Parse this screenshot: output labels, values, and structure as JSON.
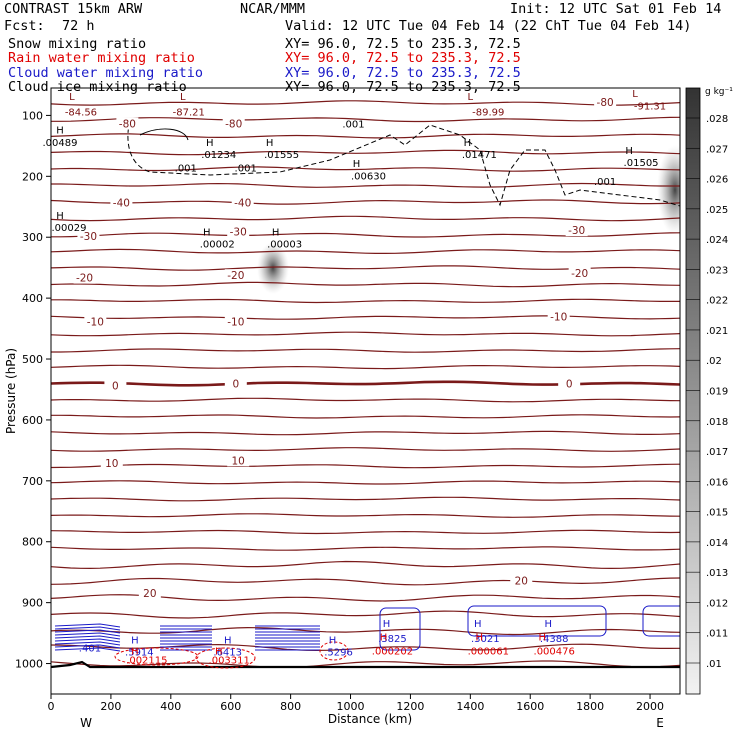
{
  "header": {
    "model": "CONTRAST 15km ARW",
    "org": "NCAR/MMM",
    "init": "Init: 12 UTC Sat 01 Feb 14",
    "fcst_label": "Fcst:",
    "fcst_value": "72 h",
    "valid": "Valid: 12 UTC Tue 04 Feb 14 (22 ChT Tue 04 Feb 14)"
  },
  "fields": [
    {
      "label": "Snow mixing ratio",
      "xy": "XY=  96.0, 72.5 to 235.3, 72.5",
      "color": "#000000"
    },
    {
      "label": "Rain water mixing ratio",
      "xy": "XY=  96.0, 72.5 to 235.3, 72.5",
      "color": "#e00000"
    },
    {
      "label": "Cloud water mixing ratio",
      "xy": "XY=  96.0, 72.5 to 235.3, 72.5",
      "color": "#1a1ac8"
    },
    {
      "label": "Cloud ice mixing ratio",
      "xy": "XY=  96.0, 72.5 to 235.3, 72.5",
      "color": "#000000"
    }
  ],
  "colorbar": {
    "unit": "g kg⁻¹",
    "ticks": [
      ".028",
      ".027",
      ".026",
      ".025",
      ".024",
      ".023",
      ".022",
      ".021",
      ".02",
      ".019",
      ".018",
      ".017",
      ".016",
      ".015",
      ".014",
      ".013",
      ".012",
      ".011",
      ".01"
    ]
  },
  "chart_data": {
    "type": "contour",
    "xlabel": "Distance (km)",
    "ylabel": "Pressure (hPa)",
    "xlim": [
      0,
      2100
    ],
    "ylim": [
      1050,
      55
    ],
    "x_ticks": [
      0,
      200,
      400,
      600,
      800,
      1000,
      1200,
      1400,
      1600,
      1800,
      2000
    ],
    "x_tick_labels": [
      "0",
      "200",
      "400",
      "600",
      "800",
      "1000",
      "1200",
      "1400",
      "1600",
      "1800",
      "2000"
    ],
    "y_ticks": [
      100,
      200,
      300,
      400,
      500,
      600,
      700,
      800,
      900,
      1000
    ],
    "y_tick_labels": [
      "100",
      "200",
      "300",
      "400",
      "500",
      "600",
      "700",
      "800",
      "900",
      "1000"
    ],
    "end_labels": {
      "west": "W",
      "east": "E"
    },
    "temperature_contour_labels": [
      {
        "text": "-80",
        "x": 255,
        "p": 115
      },
      {
        "text": "-80",
        "x": 610,
        "p": 115
      },
      {
        "text": "-80",
        "x": 1850,
        "p": 80
      },
      {
        "text": "-40",
        "x": 235,
        "p": 245
      },
      {
        "text": "-40",
        "x": 640,
        "p": 245
      },
      {
        "text": "-30",
        "x": 125,
        "p": 300
      },
      {
        "text": "-30",
        "x": 625,
        "p": 292
      },
      {
        "text": "-30",
        "x": 1755,
        "p": 290
      },
      {
        "text": "-20",
        "x": 112,
        "p": 368
      },
      {
        "text": "-20",
        "x": 617,
        "p": 364
      },
      {
        "text": "-20",
        "x": 1765,
        "p": 360
      },
      {
        "text": "-10",
        "x": 148,
        "p": 440
      },
      {
        "text": "-10",
        "x": 617,
        "p": 440
      },
      {
        "text": "-10",
        "x": 1695,
        "p": 432
      },
      {
        "text": "0",
        "x": 215,
        "p": 545
      },
      {
        "text": "0",
        "x": 617,
        "p": 542
      },
      {
        "text": "0",
        "x": 1730,
        "p": 542
      },
      {
        "text": "10",
        "x": 203,
        "p": 672
      },
      {
        "text": "10",
        "x": 625,
        "p": 668
      },
      {
        "text": "20",
        "x": 330,
        "p": 886
      },
      {
        "text": "20",
        "x": 1570,
        "p": 865
      }
    ],
    "extrema_labels": [
      {
        "text": "L",
        "x": 70,
        "p": 75,
        "color": "#7a0f0f"
      },
      {
        "text": "-84.56",
        "x": 100,
        "p": 100,
        "color": "#7a0f0f"
      },
      {
        "text": "L",
        "x": 440,
        "p": 75,
        "color": "#7a0f0f"
      },
      {
        "text": "-87.21",
        "x": 460,
        "p": 100,
        "color": "#7a0f0f"
      },
      {
        "text": "L",
        "x": 1400,
        "p": 75,
        "color": "#7a0f0f"
      },
      {
        "text": "-89.99",
        "x": 1460,
        "p": 100,
        "color": "#7a0f0f"
      },
      {
        "text": "L",
        "x": 1950,
        "p": 70,
        "color": "#7a0f0f"
      },
      {
        "text": "-91.31",
        "x": 2000,
        "p": 90,
        "color": "#7a0f0f"
      },
      {
        "text": "H",
        "x": 30,
        "p": 130,
        "color": "#000000"
      },
      {
        "text": ".00489",
        "x": 30,
        "p": 150,
        "color": "#000000"
      },
      {
        "text": "H",
        "x": 530,
        "p": 150,
        "color": "#000000"
      },
      {
        "text": ".01234",
        "x": 560,
        "p": 170,
        "color": "#000000"
      },
      {
        "text": "H",
        "x": 730,
        "p": 150,
        "color": "#000000"
      },
      {
        "text": ".01555",
        "x": 770,
        "p": 170,
        "color": "#000000"
      },
      {
        "text": "H",
        "x": 1020,
        "p": 185,
        "color": "#000000"
      },
      {
        "text": ".00630",
        "x": 1060,
        "p": 205,
        "color": "#000000"
      },
      {
        "text": "H",
        "x": 1390,
        "p": 150,
        "color": "#000000"
      },
      {
        "text": ".01471",
        "x": 1430,
        "p": 170,
        "color": "#000000"
      },
      {
        "text": "H",
        "x": 1930,
        "p": 163,
        "color": "#000000"
      },
      {
        "text": ".01505",
        "x": 1970,
        "p": 183,
        "color": "#000000"
      },
      {
        "text": "H",
        "x": 30,
        "p": 270,
        "color": "#000000"
      },
      {
        "text": ".00029",
        "x": 60,
        "p": 290,
        "color": "#000000"
      },
      {
        "text": "H",
        "x": 520,
        "p": 297,
        "color": "#000000"
      },
      {
        "text": ".00002",
        "x": 555,
        "p": 317,
        "color": "#000000"
      },
      {
        "text": "H",
        "x": 750,
        "p": 297,
        "color": "#000000"
      },
      {
        "text": ".00003",
        "x": 780,
        "p": 317,
        "color": "#000000"
      },
      {
        "text": ".001",
        "x": 1010,
        "p": 120,
        "color": "#000000"
      },
      {
        "text": ".001",
        "x": 450,
        "p": 192,
        "color": "#000000"
      },
      {
        "text": ".001",
        "x": 650,
        "p": 192,
        "color": "#000000"
      },
      {
        "text": ".001",
        "x": 1850,
        "p": 214,
        "color": "#000000"
      },
      {
        "text": ".401",
        "x": 130,
        "p": 980,
        "color": "#1a1ac8"
      },
      {
        "text": "H",
        "x": 280,
        "p": 967,
        "color": "#1a1ac8"
      },
      {
        "text": ".5914",
        "x": 295,
        "p": 987,
        "color": "#1a1ac8"
      },
      {
        "text": "H",
        "x": 590,
        "p": 967,
        "color": "#1a1ac8"
      },
      {
        "text": ".6413",
        "x": 590,
        "p": 987,
        "color": "#1a1ac8"
      },
      {
        "text": "H",
        "x": 940,
        "p": 967,
        "color": "#1a1ac8"
      },
      {
        "text": ".5296",
        "x": 960,
        "p": 987,
        "color": "#1a1ac8"
      },
      {
        "text": "H",
        "x": 1120,
        "p": 940,
        "color": "#1a1ac8"
      },
      {
        "text": ".3825",
        "x": 1140,
        "p": 965,
        "color": "#1a1ac8"
      },
      {
        "text": "H",
        "x": 1425,
        "p": 940,
        "color": "#1a1ac8"
      },
      {
        "text": ".3021",
        "x": 1450,
        "p": 965,
        "color": "#1a1ac8"
      },
      {
        "text": "H",
        "x": 1660,
        "p": 940,
        "color": "#1a1ac8"
      },
      {
        "text": ".4388",
        "x": 1680,
        "p": 965,
        "color": "#1a1ac8"
      },
      {
        "text": "H",
        "x": 280,
        "p": 985,
        "color": "#e00000"
      },
      {
        "text": ".002115",
        "x": 320,
        "p": 1000,
        "color": "#e00000"
      },
      {
        "text": "H",
        "x": 560,
        "p": 985,
        "color": "#e00000"
      },
      {
        "text": ".003311",
        "x": 595,
        "p": 1000,
        "color": "#e00000"
      },
      {
        "text": "H",
        "x": 1110,
        "p": 962,
        "color": "#e00000"
      },
      {
        "text": ".000202",
        "x": 1140,
        "p": 985,
        "color": "#e00000"
      },
      {
        "text": "H",
        "x": 1430,
        "p": 962,
        "color": "#e00000"
      },
      {
        "text": ".000061",
        "x": 1460,
        "p": 985,
        "color": "#e00000"
      },
      {
        "text": "H",
        "x": 1640,
        "p": 962,
        "color": "#e00000"
      },
      {
        "text": ".000476",
        "x": 1680,
        "p": 985,
        "color": "#e00000"
      }
    ]
  }
}
